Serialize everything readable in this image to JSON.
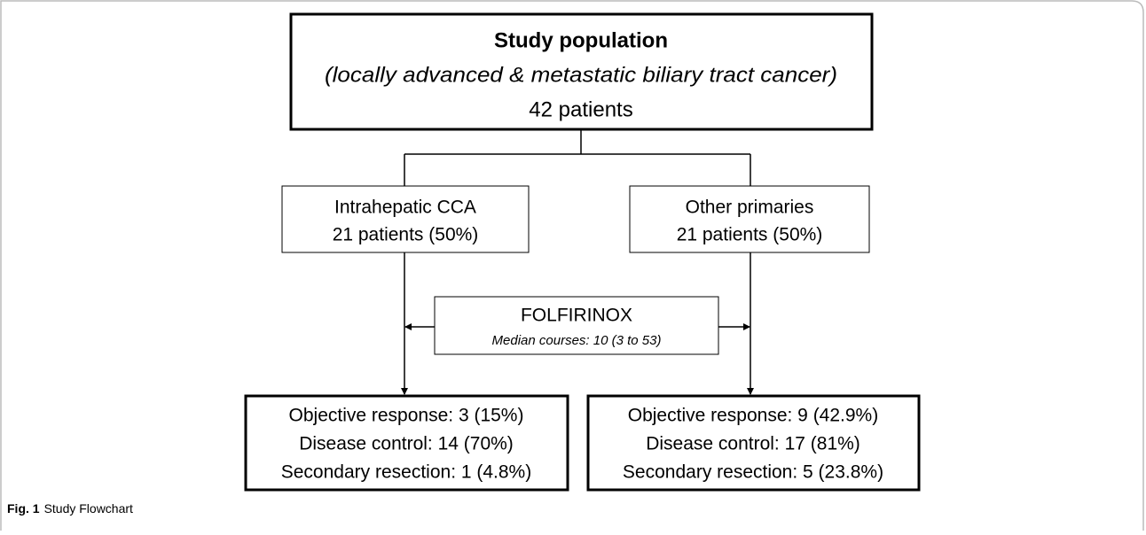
{
  "population": {
    "title": "Study population",
    "subtitle": "(locally advanced & metastatic biliary tract cancer)",
    "count": "42 patients"
  },
  "groups": [
    {
      "label": "Intrahepatic CCA",
      "count": "21 patients (50%)"
    },
    {
      "label": "Other primaries",
      "count": "21 patients (50%)"
    }
  ],
  "treatment": {
    "label": "FOLFIRINOX",
    "detail": "Median courses: 10 (3 to 53)"
  },
  "outcomes": [
    {
      "lines": [
        "Objective response: 3 (15%)",
        "Disease control: 14 (70%)",
        "Secondary resection: 1 (4.8%)"
      ]
    },
    {
      "lines": [
        "Objective response: 9 (42.9%)",
        "Disease control: 17 (81%)",
        "Secondary resection: 5 (23.8%)"
      ]
    }
  ],
  "caption": {
    "label": "Fig. 1",
    "text": "Study Flowchart"
  }
}
